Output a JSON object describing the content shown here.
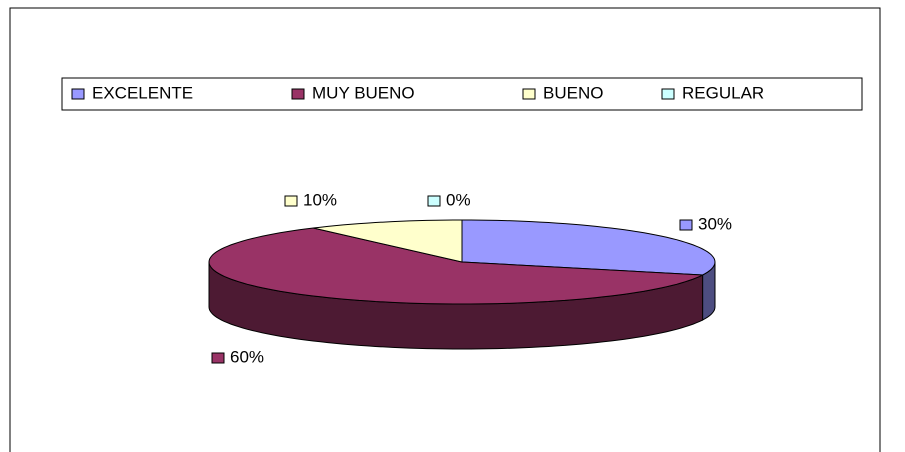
{
  "chart_data": {
    "type": "pie3d",
    "categories": [
      "EXCELENTE",
      "MUY BUENO",
      "BUENO",
      "REGULAR"
    ],
    "values": [
      30,
      60,
      10,
      0
    ],
    "value_labels": [
      "30%",
      "60%",
      "10%",
      "0%"
    ],
    "colors": [
      "#9999ff",
      "#993366",
      "#ffffcc",
      "#ccffff"
    ],
    "legend": "top"
  }
}
